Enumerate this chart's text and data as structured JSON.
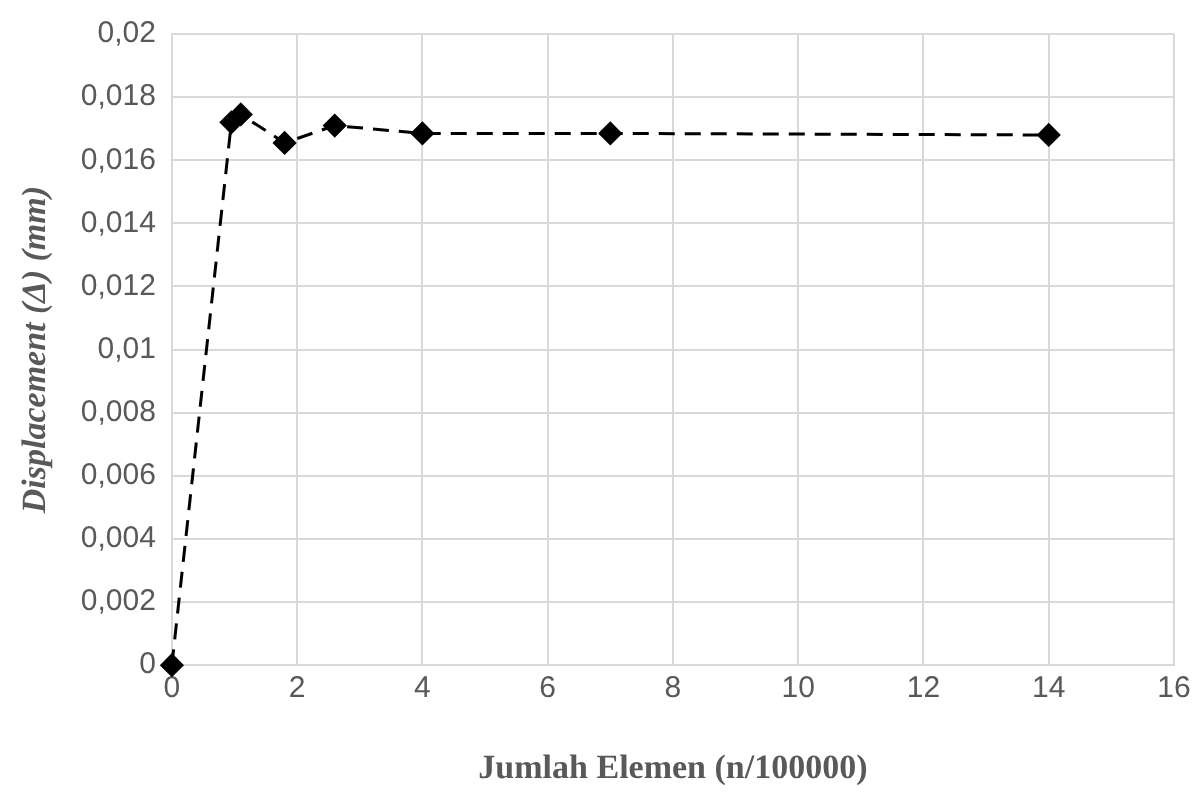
{
  "chart_data": {
    "type": "line",
    "xlabel": "Jumlah Elemen (n/100000)",
    "ylabel": "Displacement (Δ) (mm)",
    "x": [
      0,
      0.95,
      1.1,
      1.8,
      2.6,
      4,
      7,
      14
    ],
    "series": [
      {
        "color": "#000000",
        "values": [
          0,
          0.0172,
          0.01745,
          0.01655,
          0.0171,
          0.01685,
          0.01685,
          0.0168
        ]
      }
    ],
    "xlim": [
      0,
      16
    ],
    "xticks": [
      0,
      2,
      4,
      6,
      8,
      10,
      12,
      14,
      16
    ],
    "ylim": [
      0,
      0.02
    ],
    "yticks": [
      {
        "value": 0,
        "label": "0"
      },
      {
        "value": 0.002,
        "label": "0,002"
      },
      {
        "value": 0.004,
        "label": "0,004"
      },
      {
        "value": 0.006,
        "label": "0,006"
      },
      {
        "value": 0.008,
        "label": "0,008"
      },
      {
        "value": 0.01,
        "label": "0,01"
      },
      {
        "value": 0.012,
        "label": "0,012"
      },
      {
        "value": 0.014,
        "label": "0,014"
      },
      {
        "value": 0.016,
        "label": "0,016"
      },
      {
        "value": 0.018,
        "label": "0,018"
      },
      {
        "value": 0.02,
        "label": "0,02"
      }
    ],
    "grid": true,
    "legend": false,
    "marker": "diamond",
    "line_style": "dashed"
  }
}
